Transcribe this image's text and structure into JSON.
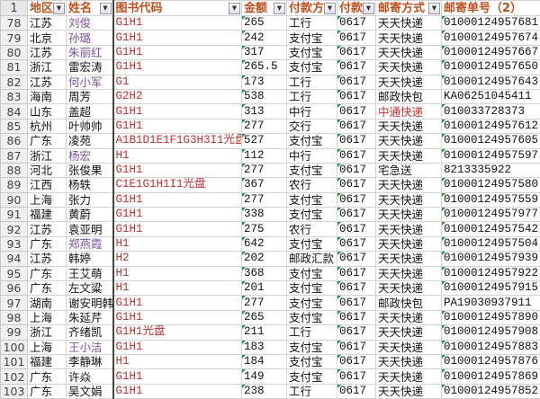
{
  "header": {
    "row_num": "1",
    "cols": [
      "地区",
      "姓名",
      "图书代码",
      "金额",
      "付款方",
      "付款",
      "邮寄方式",
      "邮寄单号（2）"
    ]
  },
  "colors": {
    "header_text": "#c0501e",
    "code_text": "#c0302e",
    "highlight_name": "#7a4fa0",
    "highlight_ship": "#d03030",
    "error_marker": "#1a9a30"
  },
  "rows": [
    {
      "n": "78",
      "region": "江苏",
      "name": "刘俊",
      "hl": true,
      "code": "G1H1",
      "amount": "265",
      "pay": "工行",
      "date": "0617",
      "ship": "天天快递",
      "track": "01000124957681"
    },
    {
      "n": "79",
      "region": "北京",
      "name": "孙璐",
      "hl": true,
      "code": "G1H1",
      "amount": "242",
      "pay": "支付宝",
      "date": "0617",
      "ship": "天天快递",
      "track": "01000124957674"
    },
    {
      "n": "80",
      "region": "江苏",
      "name": "朱丽红",
      "hl": true,
      "code": "G1H1",
      "amount": "317",
      "pay": "支付宝",
      "date": "0617",
      "ship": "天天快递",
      "track": "01000124957667"
    },
    {
      "n": "81",
      "region": "浙江",
      "name": "雷宏涛",
      "code": "G1H1",
      "amount": "265.5",
      "pay": "支付宝",
      "date": "0617",
      "ship": "天天快递",
      "track": "01000124957650"
    },
    {
      "n": "82",
      "region": "江苏",
      "name": "何小军",
      "hl": true,
      "code": "G1",
      "amount": "173",
      "pay": "工行",
      "date": "0617",
      "ship": "天天快递",
      "track": "01000124957643"
    },
    {
      "n": "83",
      "region": "海南",
      "name": "周芳",
      "code": "G2H2",
      "amount": "538",
      "pay": "工行",
      "date": "0617",
      "ship": "邮政快包",
      "track": "KA06251045411"
    },
    {
      "n": "84",
      "region": "山东",
      "name": "盖超",
      "code": "G1H1",
      "amount": "313",
      "pay": "中行",
      "date": "0617",
      "ship": "中通快递",
      "shipRed": true,
      "track": "010033728373"
    },
    {
      "n": "85",
      "region": "杭州",
      "name": "叶帅帅",
      "code": "G1H1",
      "amount": "277",
      "pay": "交行",
      "date": "0617",
      "ship": "天天快递",
      "track": "01000124957612"
    },
    {
      "n": "86",
      "region": "广东",
      "name": "凌苑",
      "code": "A1B1D1E1F1G3H3I1光盘",
      "amount": "527",
      "pay": "支付宝",
      "date": "0617",
      "ship": "天天快递",
      "track": "01000124957605"
    },
    {
      "n": "87",
      "region": "浙江",
      "name": "杨宏",
      "hl": true,
      "code": "H1",
      "amount": "112",
      "pay": "中行",
      "date": "0617",
      "ship": "天天快递",
      "track": "01000124957597"
    },
    {
      "n": "88",
      "region": "河北",
      "name": "张俊果",
      "code": "G1H1",
      "amount": "277",
      "pay": "支付宝",
      "date": "0617",
      "ship": "宅急送",
      "track": "8213335922"
    },
    {
      "n": "89",
      "region": "江西",
      "name": "杨轶",
      "code": "C1E1G1H1I1光盘",
      "amount": "367",
      "pay": "农行",
      "date": "0617",
      "ship": "天天快递",
      "track": "01000124957580"
    },
    {
      "n": "90",
      "region": "上海",
      "name": "张力",
      "code": "G1H1",
      "amount": "277",
      "pay": "支付宝",
      "date": "0617",
      "ship": "天天快递",
      "track": "01000124957559"
    },
    {
      "n": "91",
      "region": "福建",
      "name": "黄蔚",
      "code": "G1H1",
      "amount": "338",
      "pay": "支付宝",
      "date": "0617",
      "ship": "天天快递",
      "track": "01000124957977"
    },
    {
      "n": "92",
      "region": "江苏",
      "name": "袁亚明",
      "code": "G1H1",
      "amount": "275",
      "pay": "农行",
      "date": "0617",
      "ship": "天天快递",
      "track": "01000124957542"
    },
    {
      "n": "93",
      "region": "广东",
      "name": "郑燕霞",
      "hl": true,
      "code": "H1",
      "amount": "642",
      "pay": "支付宝",
      "date": "0617",
      "ship": "天天快递",
      "track": "01000124957504"
    },
    {
      "n": "94",
      "region": "江苏",
      "name": "韩婷",
      "code": "H2",
      "amount": "202",
      "pay": "邮政汇款",
      "date": "0617",
      "ship": "天天快递",
      "track": "01000124957939"
    },
    {
      "n": "95",
      "region": "广东",
      "name": "王艾萌",
      "code": "H1",
      "amount": "368",
      "pay": "支付宝",
      "date": "0617",
      "ship": "天天快递",
      "track": "01000124957922"
    },
    {
      "n": "96",
      "region": "广东",
      "name": "左文粱",
      "code": "H1",
      "amount": "201",
      "pay": "支付宝",
      "date": "0617",
      "ship": "天天快递",
      "track": "01000124957915"
    },
    {
      "n": "97",
      "region": "湖南",
      "name": "谢安明韩",
      "code": "G1H1",
      "amount": "277",
      "pay": "支付宝",
      "date": "0617",
      "ship": "邮政快包",
      "track": "PA19030937911"
    },
    {
      "n": "98",
      "region": "上海",
      "name": "朱延芹",
      "code": "G1H1",
      "amount": "265",
      "pay": "支付宝",
      "date": "0617",
      "ship": "天天快递",
      "track": "01000124957890"
    },
    {
      "n": "99",
      "region": "浙江",
      "name": "齐绪凯",
      "code": "G1H1光盘",
      "amount": "211",
      "pay": "工行",
      "date": "0617",
      "ship": "天天快递",
      "track": "01000124957908"
    },
    {
      "n": "100",
      "region": "上海",
      "name": "王小洁",
      "hl": true,
      "code": "G1H1",
      "amount": "183",
      "pay": "支付宝",
      "date": "0617",
      "ship": "天天快递",
      "track": "01000124957883"
    },
    {
      "n": "101",
      "region": "福建",
      "name": "李静琳",
      "code": "H1",
      "amount": "184",
      "pay": "支付宝",
      "date": "0617",
      "ship": "天天快递",
      "track": "01000124957876"
    },
    {
      "n": "102",
      "region": "广东",
      "name": "许焱",
      "code": "G1H1",
      "amount": "149",
      "pay": "支付宝",
      "date": "0617",
      "ship": "天天快递",
      "track": "01000124957869"
    },
    {
      "n": "103",
      "region": "广东",
      "name": "吴文娟",
      "code": "G1H1",
      "amount": "238",
      "pay": "工行",
      "date": "0617",
      "ship": "天天快递",
      "track": "01000124957852"
    }
  ]
}
